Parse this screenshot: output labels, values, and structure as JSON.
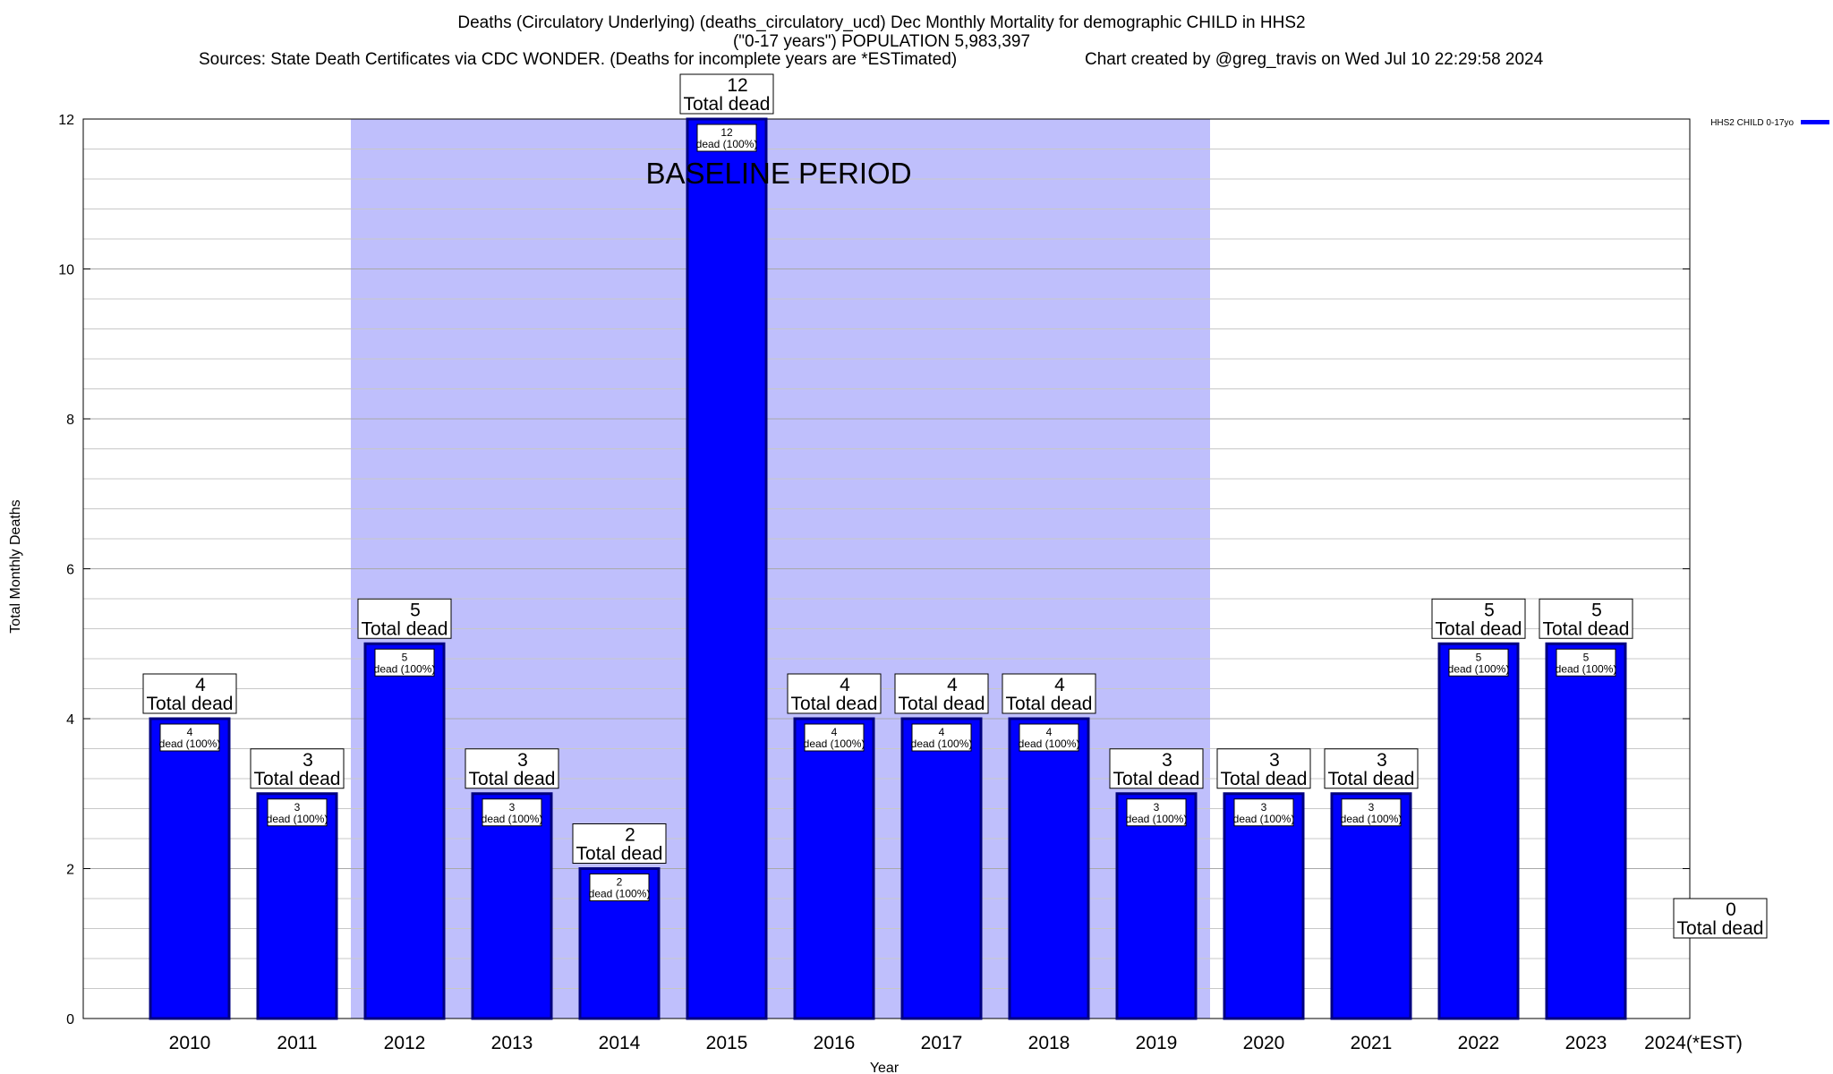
{
  "chart_data": {
    "type": "bar",
    "title_line1": "Deaths (Circulatory Underlying) (deaths_circulatory_ucd) Dec Monthly Mortality for demographic CHILD in HHS2",
    "title_line2": "(\"0-17 years\") POPULATION 5,983,397",
    "title_line3_left": "Sources: State Death Certificates via CDC WONDER. (Deaths for incomplete years are *ESTimated)",
    "title_line3_right": "Chart created by @greg_travis on Wed Jul 10 22:29:58 2024",
    "xlabel": "Year",
    "ylabel": "Total Monthly Deaths",
    "ylim": [
      0,
      12
    ],
    "yticks": [
      "0",
      "2",
      "4",
      "6",
      "8",
      "10",
      "12"
    ],
    "grid": true,
    "categories": [
      "2010",
      "2011",
      "2012",
      "2013",
      "2014",
      "2015",
      "2016",
      "2017",
      "2018",
      "2019",
      "2020",
      "2021",
      "2022",
      "2023",
      "2024(*EST)"
    ],
    "series": [
      {
        "name": "HHS2 CHILD 0-17yo",
        "color": "#0000ff",
        "values": [
          4,
          3,
          5,
          3,
          2,
          12,
          4,
          4,
          4,
          3,
          3,
          3,
          5,
          5,
          0
        ]
      }
    ],
    "total_labels": [
      "4\nTotal dead",
      "3\nTotal dead",
      "5\nTotal dead",
      "3\nTotal dead",
      "2\nTotal dead",
      "12\nTotal dead",
      "4\nTotal dead",
      "4\nTotal dead",
      "4\nTotal dead",
      "3\nTotal dead",
      "3\nTotal dead",
      "3\nTotal dead",
      "5\nTotal dead",
      "5\nTotal dead",
      "0\nTotal dead"
    ],
    "inner_labels": [
      "4\ndead (100%)",
      "3\ndead (100%)",
      "5\ndead (100%)",
      "3\ndead (100%)",
      "2\ndead (100%)",
      "12\ndead (100%)",
      "4\ndead (100%)",
      "4\ndead (100%)",
      "4\ndead (100%)",
      "3\ndead (100%)",
      "3\ndead (100%)",
      "3\ndead (100%)",
      "5\ndead (100%)",
      "5\ndead (100%)",
      ""
    ],
    "baseline": {
      "label": "BASELINE PERIOD",
      "start": "2012",
      "end": "2019",
      "color": "#bfbffc"
    },
    "legend_position": "top-right"
  }
}
